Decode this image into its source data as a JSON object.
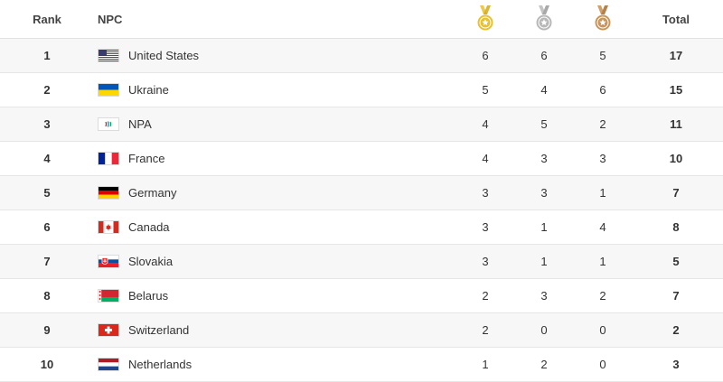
{
  "header": {
    "rank": "Rank",
    "npc": "NPC",
    "total": "Total",
    "medals": {
      "gold_icon": "gold-medal-icon",
      "silver_icon": "silver-medal-icon",
      "bronze_icon": "bronze-medal-icon"
    }
  },
  "colors": {
    "gold": "#e8c12f",
    "silver": "#b8b8b8",
    "bronze": "#c8965a",
    "row_alt": "#f7f7f7"
  },
  "rows": [
    {
      "rank": "1",
      "npc": "United States",
      "flag": "flag-united-states",
      "gold": "6",
      "silver": "6",
      "bronze": "5",
      "total": "17"
    },
    {
      "rank": "2",
      "npc": "Ukraine",
      "flag": "flag-ukraine",
      "gold": "5",
      "silver": "4",
      "bronze": "6",
      "total": "15"
    },
    {
      "rank": "3",
      "npc": "NPA",
      "flag": "flag-npa",
      "gold": "4",
      "silver": "5",
      "bronze": "2",
      "total": "11"
    },
    {
      "rank": "4",
      "npc": "France",
      "flag": "flag-france",
      "gold": "4",
      "silver": "3",
      "bronze": "3",
      "total": "10"
    },
    {
      "rank": "5",
      "npc": "Germany",
      "flag": "flag-germany",
      "gold": "3",
      "silver": "3",
      "bronze": "1",
      "total": "7"
    },
    {
      "rank": "6",
      "npc": "Canada",
      "flag": "flag-canada",
      "gold": "3",
      "silver": "1",
      "bronze": "4",
      "total": "8"
    },
    {
      "rank": "7",
      "npc": "Slovakia",
      "flag": "flag-slovakia",
      "gold": "3",
      "silver": "1",
      "bronze": "1",
      "total": "5"
    },
    {
      "rank": "8",
      "npc": "Belarus",
      "flag": "flag-belarus",
      "gold": "2",
      "silver": "3",
      "bronze": "2",
      "total": "7"
    },
    {
      "rank": "9",
      "npc": "Switzerland",
      "flag": "flag-switzerland",
      "gold": "2",
      "silver": "0",
      "bronze": "0",
      "total": "2"
    },
    {
      "rank": "10",
      "npc": "Netherlands",
      "flag": "flag-netherlands",
      "gold": "1",
      "silver": "2",
      "bronze": "0",
      "total": "3"
    }
  ]
}
